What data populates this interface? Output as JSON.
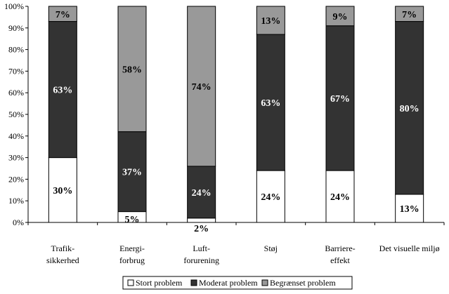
{
  "chart_data": {
    "type": "bar",
    "stacked": true,
    "percent_stacked": true,
    "categories": [
      [
        "Trafik-",
        "sikkerhed"
      ],
      [
        "Energi-",
        "forbrug"
      ],
      [
        "Luft-",
        "forurening"
      ],
      [
        "Støj"
      ],
      [
        "Barriere-",
        "effekt"
      ],
      [
        "Det visuelle miljø"
      ]
    ],
    "series": [
      {
        "name": "Stort problem",
        "color": "#ffffff",
        "label_color": "#000000",
        "values": [
          30,
          5,
          2,
          24,
          24,
          13
        ],
        "labels": [
          "30%",
          "5%",
          "2%",
          "24%",
          "24%",
          "13%"
        ]
      },
      {
        "name": "Moderat problem",
        "color": "#333333",
        "label_color": "#ffffff",
        "values": [
          63,
          37,
          24,
          63,
          67,
          80
        ],
        "labels": [
          "63%",
          "37%",
          "24%",
          "63%",
          "67%",
          "80%"
        ]
      },
      {
        "name": "Begrænset problem",
        "color": "#999999",
        "label_color": "#000000",
        "values": [
          7,
          58,
          74,
          13,
          9,
          7
        ],
        "labels": [
          "7%",
          "58%",
          "74%",
          "13%",
          "9%",
          "7%"
        ]
      }
    ],
    "y_ticks": [
      "0%",
      "10%",
      "20%",
      "30%",
      "40%",
      "50%",
      "60%",
      "70%",
      "80%",
      "90%",
      "100%"
    ],
    "ylim": [
      0,
      100
    ],
    "grid": false,
    "legend_position": "bottom"
  }
}
